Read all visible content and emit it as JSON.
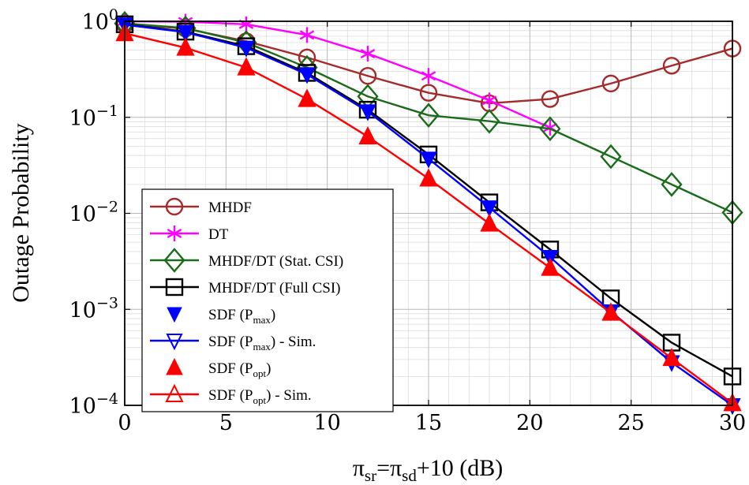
{
  "chart_data": {
    "type": "line",
    "title": "",
    "xlabel": {
      "base1": "π",
      "sub1": "sr",
      "mid": "=π",
      "sub2": "sd",
      "tail": "+10 (dB)"
    },
    "ylabel": "Outage Probability",
    "xlim": [
      0,
      30
    ],
    "ylim": [
      0.0001,
      1
    ],
    "yscale": "log",
    "grid": true,
    "legend_position": "bottom-left",
    "x_ticks": [
      0,
      5,
      10,
      15,
      20,
      25,
      30
    ],
    "x_tick_labels": [
      "0",
      "5",
      "10",
      "15",
      "20",
      "25",
      "30"
    ],
    "y_ticks": [
      {
        "value": 1,
        "base": "10",
        "exp": "0"
      },
      {
        "value": 0.1,
        "base": "10",
        "exp": "−1"
      },
      {
        "value": 0.01,
        "base": "10",
        "exp": "−2"
      },
      {
        "value": 0.001,
        "base": "10",
        "exp": "−3"
      },
      {
        "value": 0.0001,
        "base": "10",
        "exp": "−4"
      }
    ],
    "series": [
      {
        "name": "MHDF",
        "color": "#a52a2a",
        "marker": "circle",
        "line": true,
        "x": [
          0,
          3,
          6,
          9,
          12,
          15,
          18,
          21,
          24,
          27,
          30
        ],
        "y": [
          0.93,
          0.84,
          0.62,
          0.42,
          0.27,
          0.18,
          0.14,
          0.155,
          0.225,
          0.345,
          0.52
        ]
      },
      {
        "name": "DT",
        "color": "#ff00ff",
        "marker": "asterisk",
        "line": true,
        "x": [
          0,
          3,
          6,
          9,
          12,
          15,
          18,
          21
        ],
        "y": [
          1.0,
          0.99,
          0.93,
          0.72,
          0.46,
          0.27,
          0.15,
          0.078
        ]
      },
      {
        "name": "MHDF/DT (Stat. CSI)",
        "color": "#1a6b1a",
        "marker": "diamond",
        "line": true,
        "x": [
          0,
          3,
          6,
          9,
          12,
          15,
          18,
          21,
          24,
          27,
          30
        ],
        "y": [
          0.95,
          0.85,
          0.6,
          0.33,
          0.165,
          0.105,
          0.091,
          0.076,
          0.039,
          0.02,
          0.0102
        ]
      },
      {
        "name": "MHDF/DT (Full CSI)",
        "color": "#000000",
        "marker": "square",
        "line": true,
        "x": [
          0,
          3,
          6,
          9,
          12,
          15,
          18,
          21,
          24,
          27,
          30
        ],
        "y": [
          0.93,
          0.78,
          0.55,
          0.29,
          0.12,
          0.041,
          0.013,
          0.0042,
          0.0013,
          0.00045,
          0.0002
        ]
      },
      {
        "name": "SDF (P_max)",
        "label": {
          "pre": "SDF (P",
          "sub": "max",
          "post": ")"
        },
        "color": "#0000ff",
        "marker": "triangle-down-filled",
        "line": false,
        "x": [
          0,
          3,
          6,
          9,
          12,
          15,
          18,
          21,
          24,
          27,
          30
        ],
        "y": [
          0.92,
          0.77,
          0.53,
          0.28,
          0.115,
          0.037,
          0.0115,
          0.0035,
          0.00095,
          0.00028,
          0.0001
        ]
      },
      {
        "name": "SDF (P_max) - Sim.",
        "label": {
          "pre": "SDF (P",
          "sub": "max",
          "post": ") - Sim."
        },
        "color": "#0000ff",
        "marker": "triangle-down",
        "line": true,
        "x": [
          0,
          3,
          6,
          9,
          12,
          15,
          18,
          21,
          24,
          27,
          30
        ],
        "y": [
          0.92,
          0.77,
          0.53,
          0.28,
          0.115,
          0.037,
          0.0115,
          0.0035,
          0.00095,
          0.00028,
          0.0001
        ]
      },
      {
        "name": "SDF (P_opt)",
        "label": {
          "pre": "SDF (P",
          "sub": "opt",
          "post": ")"
        },
        "color": "#ff0000",
        "marker": "triangle-up-filled",
        "line": false,
        "x": [
          0,
          3,
          6,
          9,
          12,
          15,
          18,
          21,
          24,
          27,
          30
        ],
        "y": [
          0.75,
          0.53,
          0.33,
          0.155,
          0.063,
          0.023,
          0.0078,
          0.0027,
          0.00092,
          0.00031,
          0.000105
        ]
      },
      {
        "name": "SDF (P_opt) - Sim.",
        "label": {
          "pre": "SDF (P",
          "sub": "opt",
          "post": ") - Sim."
        },
        "color": "#ff0000",
        "marker": "triangle-up",
        "line": true,
        "x": [
          0,
          3,
          6,
          9,
          12,
          15,
          18,
          21,
          24,
          27,
          30
        ],
        "y": [
          0.75,
          0.53,
          0.33,
          0.155,
          0.063,
          0.023,
          0.0078,
          0.0027,
          0.00092,
          0.00031,
          0.000105
        ]
      }
    ]
  }
}
